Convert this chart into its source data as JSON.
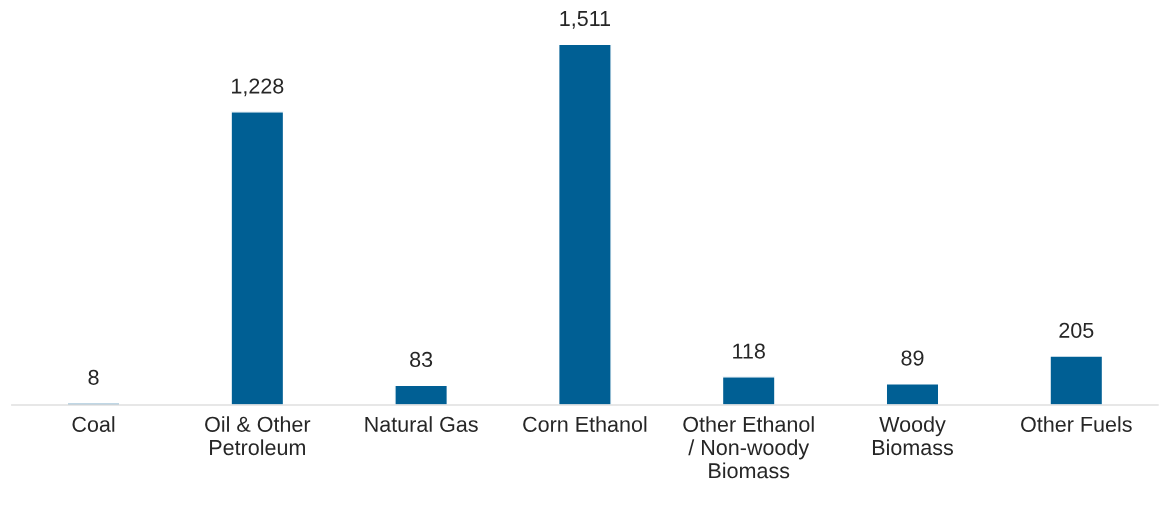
{
  "chart_data": {
    "type": "bar",
    "categories": [
      "Coal",
      "Oil & Other\nPetroleum",
      "Natural Gas",
      "Corn Ethanol",
      "Other Ethanol\n/ Non-woody\nBiomass",
      "Woody\nBiomass",
      "Other Fuels"
    ],
    "values": [
      8,
      1228,
      83,
      1511,
      118,
      89,
      205
    ],
    "value_labels": [
      "8",
      "1,228",
      "83",
      "1,511",
      "118",
      "89",
      "205"
    ],
    "color": "#005f94",
    "grid": false,
    "legend": false
  }
}
